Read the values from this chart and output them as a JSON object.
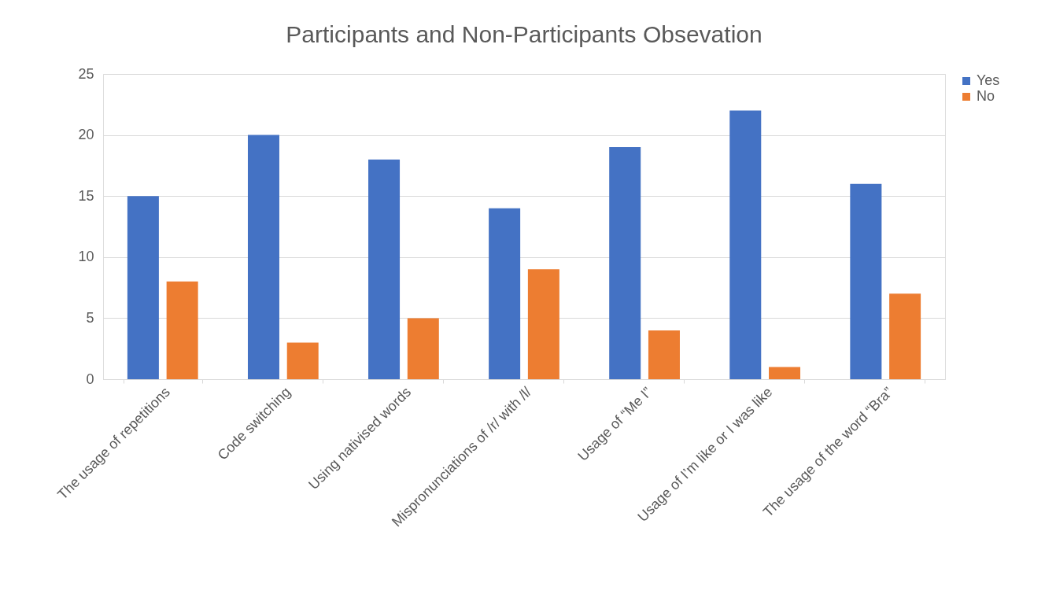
{
  "chart_data": {
    "type": "bar",
    "title": "Participants and Non-Participants Obsevation",
    "categories": [
      "The usage of repetitions",
      "Code switching",
      "Using nativised words",
      "Mispronunciations of /r/ with /l/",
      "Usage of “Me I”",
      "Usage of I’m like or  I was like",
      "The usage of the word “Bra”"
    ],
    "series": [
      {
        "name": "Yes",
        "color": "#4472c4",
        "values": [
          15,
          20,
          18,
          14,
          19,
          22,
          16
        ]
      },
      {
        "name": "No",
        "color": "#ed7d31",
        "values": [
          8,
          3,
          5,
          9,
          4,
          1,
          7
        ]
      }
    ],
    "ylim": [
      0,
      25
    ],
    "yticks": [
      0,
      5,
      10,
      15,
      20,
      25
    ],
    "grid": "y",
    "legend": "right"
  }
}
